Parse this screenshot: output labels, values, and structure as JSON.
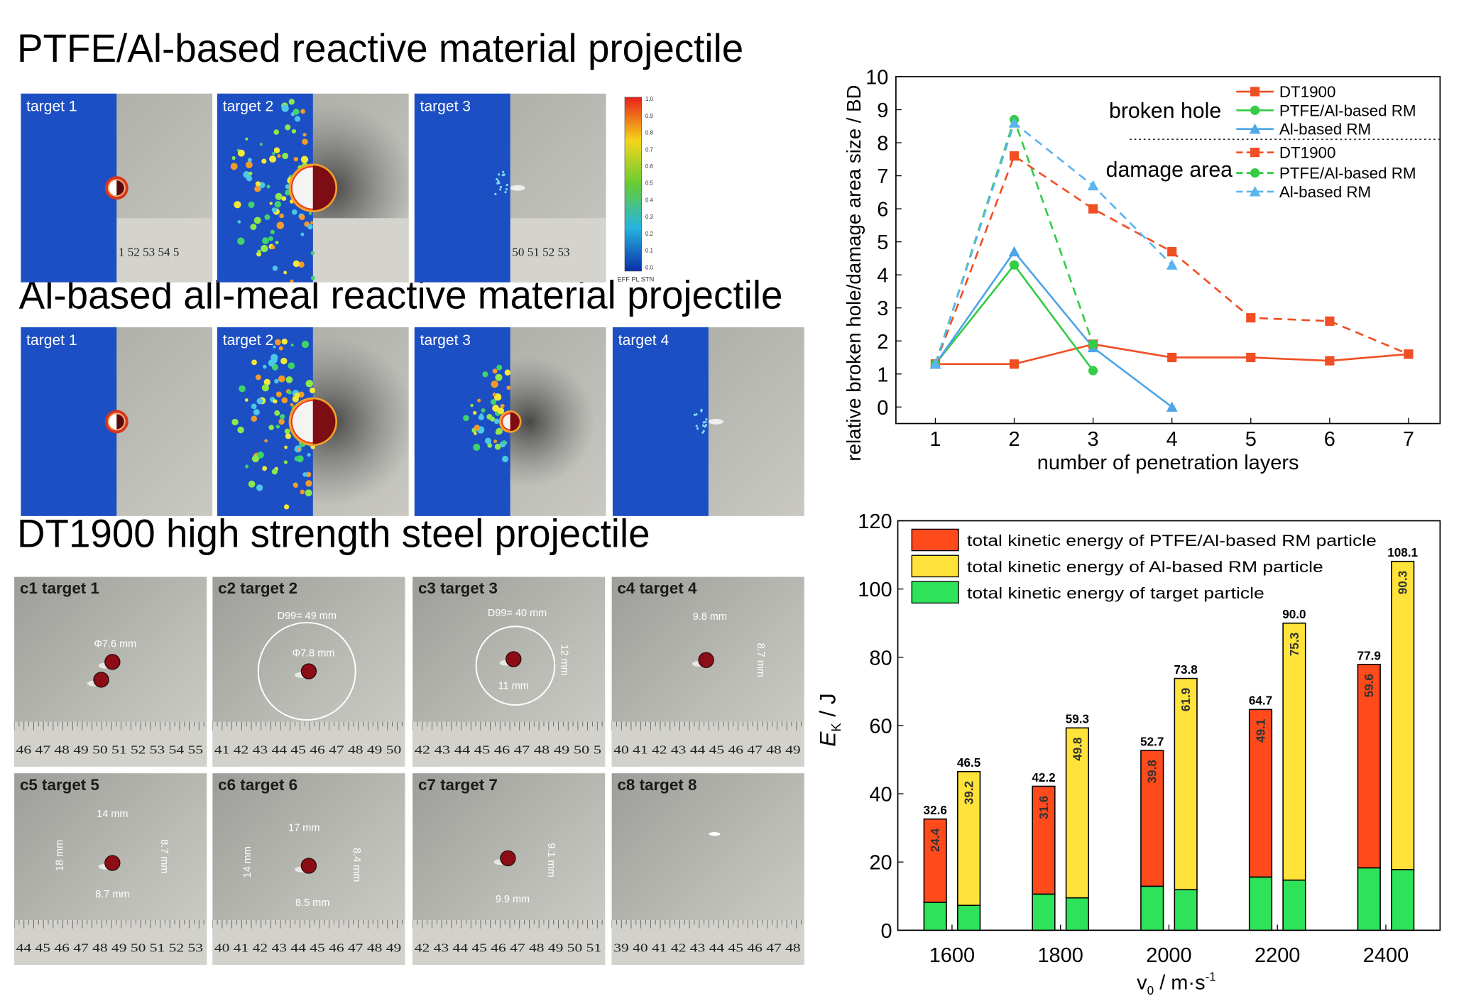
{
  "sections": [
    {
      "title": "PTFE/Al-based reactive material projectile",
      "targets": [
        "target 1",
        "target 2",
        "target 3"
      ],
      "rulers": [
        "1 52 53 54 5",
        "",
        "50 51 52 53"
      ],
      "colorbar": [
        "1.0",
        "0.9",
        "0.8",
        "0.7",
        "0.6",
        "0.5",
        "0.4",
        "0.3",
        "0.2",
        "0.1",
        "0.0"
      ],
      "colorbar_label": "EFF PL STN"
    },
    {
      "title": "Al-based all-meal reactive material projectile",
      "targets": [
        "target 1",
        "target 2",
        "target 3",
        "target 4"
      ]
    },
    {
      "title": "DT1900 high strength steel projectile",
      "targets": [
        "c1 target 1",
        "c2 target 2",
        "c3 target 3",
        "c4 target 4",
        "c5 target 5",
        "c6 target 6",
        "c7 target 7",
        "c8 target 8"
      ],
      "rulers": [
        "46 47 48 49 50 51 52 53 54 55",
        "41 42 43 44 45 46 47 48 49 50",
        "42 43 44 45 46 47 48 49 50 5",
        "40 41 42 43 44 45 46 47 48 49",
        "44 45 46 47 48 49 50 51 52 53",
        "40 41 42 43 44 45 46 47 48 49",
        "42 43 44 45 46 47 48 49 50 51",
        "39 40 41 42 43 44 45 46 47 48"
      ],
      "annotations": [
        [
          "Φ7.6 mm"
        ],
        [
          "D99= 49 mm",
          "Φ7.8 mm"
        ],
        [
          "D99= 40 mm",
          "12 mm",
          "11 mm"
        ],
        [
          "9.8 mm",
          "8.7 mm"
        ],
        [
          "14 mm",
          "18 mm",
          "8.7 mm",
          "8.7 mm"
        ],
        [
          "17 mm",
          "14 mm",
          "8.4 mm",
          "8.5 mm"
        ],
        [
          "9.1 mm",
          "9.9 mm"
        ],
        []
      ]
    }
  ],
  "chart_data": [
    {
      "type": "line",
      "xlabel": "number of penetration layers",
      "ylabel": "relative broken hole/damage area size / BD",
      "x": [
        1,
        2,
        3,
        4,
        5,
        6,
        7
      ],
      "xlim": [
        0.5,
        7.4
      ],
      "xticks": [
        1,
        2,
        3,
        4,
        5,
        6,
        7
      ],
      "ylim": [
        -0.5,
        10
      ],
      "yticks": [
        0,
        1,
        2,
        3,
        4,
        5,
        6,
        7,
        8,
        9,
        10
      ],
      "legend_groups": [
        "broken hole",
        "damage area"
      ],
      "series": [
        {
          "name": "DT1900",
          "group": 0,
          "color": "#f04e23",
          "marker": "square",
          "dashed": false,
          "values": [
            1.3,
            1.3,
            1.9,
            1.5,
            1.5,
            1.4,
            1.6
          ]
        },
        {
          "name": "PTFE/Al-based RM",
          "group": 0,
          "color": "#33cc44",
          "marker": "circle",
          "dashed": false,
          "values": [
            1.3,
            4.3,
            1.1,
            null,
            null,
            null,
            null
          ]
        },
        {
          "name": "Al-based RM",
          "group": 0,
          "color": "#4da6e8",
          "marker": "triangle",
          "dashed": false,
          "values": [
            1.3,
            4.7,
            1.8,
            0,
            null,
            null,
            null
          ]
        },
        {
          "name": "DT1900",
          "group": 1,
          "color": "#f04e23",
          "marker": "square",
          "dashed": true,
          "values": [
            1.3,
            7.6,
            6.0,
            4.7,
            2.7,
            2.6,
            1.6
          ]
        },
        {
          "name": "PTFE/Al-based RM",
          "group": 1,
          "color": "#33cc44",
          "marker": "circle",
          "dashed": true,
          "values": [
            1.3,
            8.7,
            1.9,
            null,
            null,
            null,
            null
          ]
        },
        {
          "name": "Al-based RM",
          "group": 1,
          "color": "#5ab4f0",
          "marker": "triangle",
          "dashed": true,
          "values": [
            1.3,
            8.6,
            6.7,
            4.3,
            null,
            null,
            null
          ]
        }
      ]
    },
    {
      "type": "stacked_bar",
      "xlabel_parts": [
        "v",
        "0",
        " / m·s",
        "-1"
      ],
      "ylabel_parts": [
        "E",
        "K",
        " / J"
      ],
      "categories": [
        "1600",
        "1800",
        "2000",
        "2200",
        "2400"
      ],
      "ylim": [
        0,
        120
      ],
      "yticks": [
        0,
        20,
        40,
        60,
        80,
        100,
        120
      ],
      "series": [
        {
          "name": "total kinetic energy of PTFE/Al-based RM particle",
          "color": "#ff4a1c"
        },
        {
          "name": "total kinetic energy of Al-based RM particle",
          "color": "#ffe23a"
        },
        {
          "name": "total kinetic energy of target particle",
          "color": "#2ee35a"
        }
      ],
      "bars": [
        {
          "segments": [
            {
              "series": 2,
              "values": [
                8.2,
                10.6,
                12.9,
                15.6,
                18.3
              ]
            },
            {
              "series": 0,
              "values": [
                24.4,
                31.6,
                39.8,
                49.1,
                59.6
              ],
              "labeled": true
            }
          ],
          "total_labels": [
            "32.6",
            "42.2",
            "52.7",
            "64.7",
            "77.9"
          ]
        },
        {
          "segments": [
            {
              "series": 2,
              "values": [
                7.3,
                9.5,
                11.9,
                14.7,
                17.8
              ]
            },
            {
              "series": 1,
              "values": [
                39.2,
                49.8,
                61.9,
                75.3,
                90.3
              ],
              "labeled": true
            }
          ],
          "total_labels": [
            "46.5",
            "59.3",
            "73.8",
            "90.0",
            "108.1"
          ]
        }
      ]
    }
  ]
}
